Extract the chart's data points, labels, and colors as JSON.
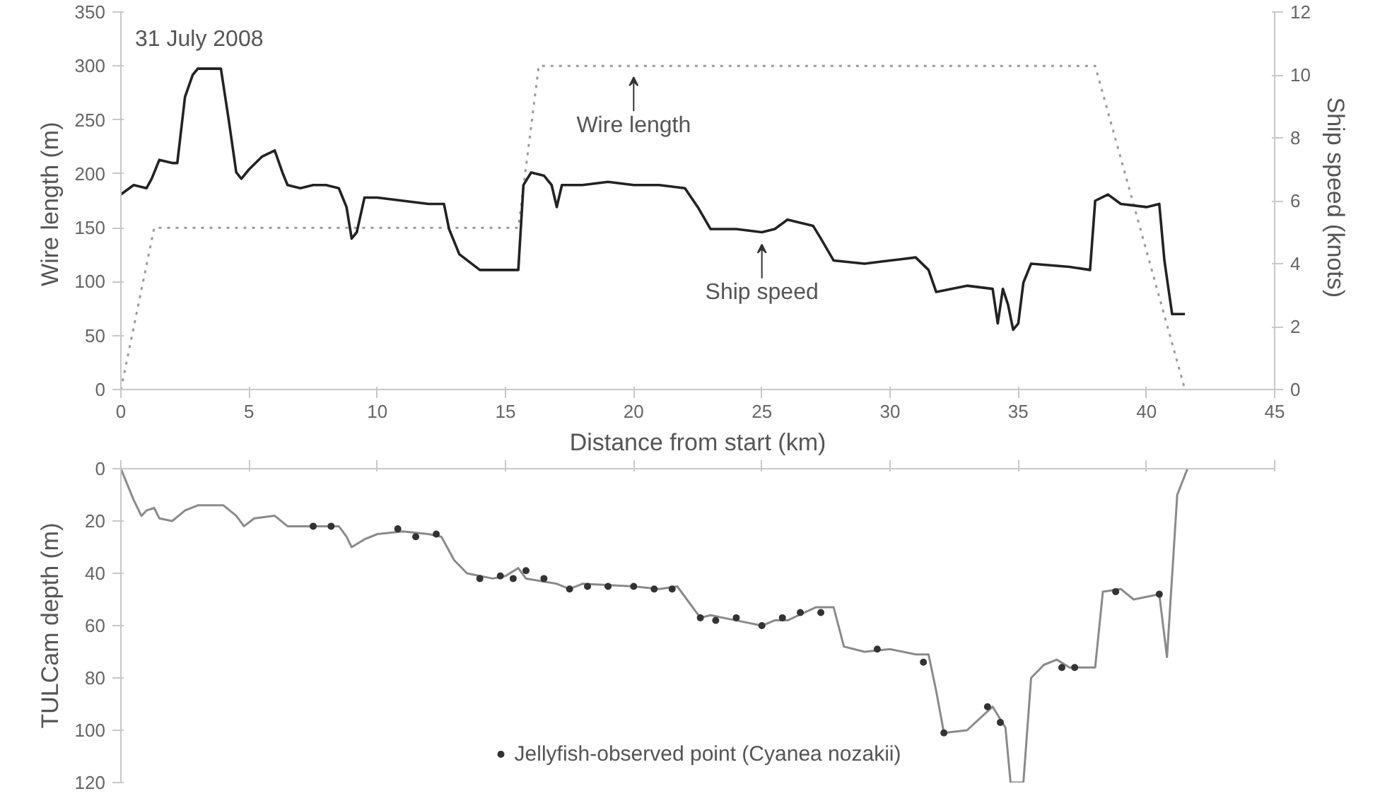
{
  "chart_data": [
    {
      "type": "line",
      "xlabel": "Distance from start (km)",
      "ylabel": "Wire length  (m)",
      "y2label": "Ship speed  (knots)",
      "xlim": [
        0,
        45
      ],
      "xticks": [
        0,
        5,
        10,
        15,
        20,
        25,
        30,
        35,
        40,
        45
      ],
      "ylim": [
        0,
        350
      ],
      "yticks": [
        0,
        50,
        100,
        150,
        200,
        250,
        300,
        350
      ],
      "y2lim": [
        0,
        12
      ],
      "y2ticks": [
        0,
        2,
        4,
        6,
        8,
        10,
        12
      ],
      "annotations": [
        "31 July 2008",
        {
          "text": "Wire length",
          "x": 20,
          "y": 300
        },
        {
          "text": "Ship speed",
          "x": 25,
          "y": 145
        }
      ],
      "series": [
        {
          "color": "#9a9a9a",
          "line_style": "dotted",
          "x": [
            0,
            1.3,
            15.5,
            16.3,
            38,
            41.5
          ],
          "values": [
            0,
            150,
            150,
            300,
            300,
            0
          ]
        },
        {
          "color": "#222222",
          "axis": "y2",
          "x": [
            0,
            0.5,
            1,
            1.2,
            1.5,
            2,
            2.2,
            2.5,
            2.8,
            3,
            3.5,
            3.9,
            4.2,
            4.5,
            4.7,
            5,
            5.5,
            6,
            6.3,
            6.5,
            7,
            7.5,
            8,
            8.5,
            8.8,
            9,
            9.2,
            9.5,
            10,
            11,
            12,
            12.6,
            12.8,
            13.2,
            14,
            15,
            15.5,
            15.7,
            16,
            16.5,
            16.8,
            17,
            17.2,
            18,
            19,
            20,
            21,
            22,
            22.5,
            23,
            24,
            25,
            25.5,
            26,
            27,
            27.3,
            27.8,
            29,
            30,
            31,
            31.5,
            31.8,
            33,
            34,
            34.2,
            34.4,
            34.6,
            34.8,
            35,
            35.2,
            35.5,
            37,
            37.8,
            38,
            38.5,
            39,
            40,
            40.5,
            40.7,
            41,
            41.5
          ],
          "values": [
            6.2,
            6.5,
            6.4,
            6.7,
            7.3,
            7.2,
            7.2,
            9.3,
            10.0,
            10.2,
            10.2,
            10.2,
            8.6,
            6.9,
            6.7,
            7.0,
            7.4,
            7.6,
            6.9,
            6.5,
            6.4,
            6.5,
            6.5,
            6.4,
            5.8,
            4.8,
            5.0,
            6.1,
            6.1,
            6.0,
            5.9,
            5.9,
            5.1,
            4.3,
            3.8,
            3.8,
            3.8,
            6.5,
            6.9,
            6.8,
            6.5,
            5.8,
            6.5,
            6.5,
            6.6,
            6.5,
            6.5,
            6.4,
            5.8,
            5.1,
            5.1,
            5.0,
            5.1,
            5.4,
            5.2,
            4.8,
            4.1,
            4.0,
            4.1,
            4.2,
            3.8,
            3.1,
            3.3,
            3.2,
            2.1,
            3.2,
            2.7,
            1.9,
            2.1,
            3.4,
            4.0,
            3.9,
            3.8,
            6.0,
            6.2,
            5.9,
            5.8,
            5.9,
            4.1,
            2.4,
            2.4
          ]
        }
      ]
    },
    {
      "type": "line",
      "tick_labels": "y",
      "ylabel": "TULCam depth (m)",
      "legend": "bottom",
      "xlim": [
        0,
        45
      ],
      "xticks": [
        0,
        5,
        10,
        15,
        20,
        25,
        30,
        35,
        40,
        45
      ],
      "ylim": [
        120,
        0
      ],
      "yticks": [
        0,
        20,
        40,
        60,
        80,
        100,
        120
      ],
      "series": [
        {
          "color": "#8a8a8a",
          "x": [
            0,
            0.5,
            0.8,
            1,
            1.3,
            1.5,
            2,
            2.5,
            3,
            4,
            4.5,
            4.8,
            5.2,
            6,
            6.5,
            8,
            8.5,
            8.8,
            9,
            9.5,
            10,
            11,
            12,
            12.5,
            13,
            13.5,
            14.5,
            15,
            15.5,
            15.8,
            17,
            17.5,
            18,
            20,
            21,
            21.7,
            22.6,
            23,
            24,
            25,
            25.5,
            26,
            27.1,
            27.8,
            28.2,
            29,
            30,
            31,
            31.5,
            31.8,
            32.1,
            33,
            34,
            34.5,
            34.7,
            35.2,
            35.5,
            36,
            36.5,
            37,
            38,
            38.3,
            39,
            39.5,
            40,
            40.5,
            40.8,
            41.2,
            41.6
          ],
          "values": [
            0,
            12,
            18,
            16,
            15,
            19,
            20,
            16,
            14,
            14,
            18,
            22,
            19,
            18,
            22,
            22,
            22,
            26,
            30,
            27,
            25,
            24,
            25,
            26,
            35,
            40,
            42,
            41,
            38,
            42,
            44,
            46,
            44,
            45,
            46,
            45,
            57,
            56,
            58,
            60,
            58,
            58,
            53,
            53,
            68,
            70,
            69,
            71,
            71,
            85,
            101,
            100,
            91,
            99,
            120,
            120,
            80,
            75,
            73,
            76,
            76,
            47,
            46,
            50,
            49,
            48,
            72,
            10,
            0
          ]
        },
        {
          "type": "scatter",
          "marker": "circle",
          "color": "#333333",
          "name": "Jellyfish-observed point (Cyanea nozakii)",
          "x": [
            7.5,
            8.2,
            10.8,
            11.5,
            12.3,
            14,
            14.8,
            15.3,
            15.8,
            16.5,
            17.5,
            18.2,
            19,
            20,
            20.8,
            21.5,
            22.6,
            23.2,
            24,
            25,
            25.8,
            26.5,
            27.3,
            29.5,
            31.3,
            32.1,
            33.8,
            34.3,
            36.7,
            37.2,
            38.8,
            40.5
          ],
          "values": [
            22,
            22,
            23,
            26,
            25,
            42,
            41,
            42,
            39,
            42,
            46,
            45,
            45,
            45,
            46,
            46,
            57,
            58,
            57,
            60,
            57,
            55,
            55,
            69,
            74,
            101,
            91,
            97,
            76,
            76,
            47,
            48
          ]
        }
      ]
    }
  ]
}
